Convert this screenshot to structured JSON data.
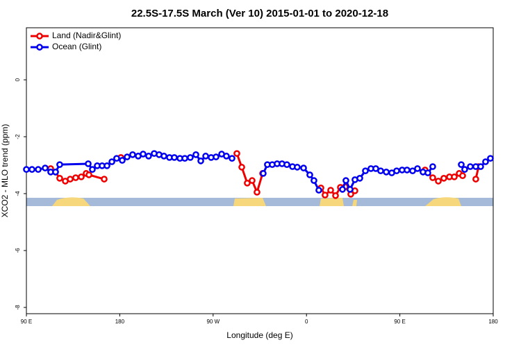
{
  "chart_data": {
    "type": "line",
    "title": "22.5S-17.5S March (Ver 10)   2015-01-01 to 2020-12-18",
    "x_label": "Longitude (deg E)",
    "y_label": "XCO2 - MLO trend (ppm)",
    "xlim": [
      90,
      540
    ],
    "xticks": [
      {
        "value": 90,
        "label": "90 E"
      },
      180,
      {
        "value": 270,
        "label": "90 W"
      },
      {
        "value": 360,
        "label": "0"
      },
      {
        "value": 450,
        "label": "90 E"
      },
      {
        "value": 540,
        "label": "180"
      }
    ],
    "ylim": [
      -8.22,
      1.83
    ],
    "yticks": [
      0,
      -2,
      -4,
      -6,
      -8
    ],
    "grid": false,
    "legend": "top-left",
    "series": [
      {
        "name": "Land (Nadir&Glint)",
        "color": "#ee0000",
        "x": [
          113.4,
          118.1,
          122.1,
          127.5,
          132.2,
          137.5,
          142.9,
          147.6,
          150.3,
          165,
          null,
          181.1,
          null,
          292.9,
          297.6,
          302.9,
          307.6,
          312.3,
          317.7,
          null,
          373.9,
          377.9,
          383.3,
          388,
          392.7,
          397.3,
          402.7,
          406.7,
          null,
          474.3,
          481.7,
          487.1,
          492.4,
          497.8,
          502.5,
          507.2,
          510.5,
          null,
          523.2,
          525.9
        ],
        "values": [
          -3.12,
          -3.24,
          -3.46,
          -3.56,
          -3.49,
          -3.44,
          -3.41,
          -3.29,
          -3.34,
          -3.49,
          null,
          -2.73,
          null,
          -2.59,
          -3.07,
          -3.63,
          -3.54,
          -3.95,
          -3.29,
          null,
          -3.8,
          -4.05,
          -3.88,
          -4.07,
          -3.78,
          -3.76,
          -4.02,
          -3.9,
          null,
          -3.17,
          -3.44,
          -3.56,
          -3.46,
          -3.41,
          -3.41,
          -3.29,
          -3.37,
          null,
          -3.49,
          -3.05
        ]
      },
      {
        "name": "Ocean (Glint)",
        "color": "#0000ee",
        "x": [
          90,
          95.4,
          101.4,
          108.1,
          113.4,
          118.1,
          122.1,
          149.6,
          153.6,
          158.3,
          163,
          167.7,
          172.4,
          177,
          182.4,
          187.1,
          192.4,
          197.8,
          202.5,
          207.8,
          213.2,
          217.9,
          222.6,
          227.9,
          232.6,
          238,
          242.7,
          248,
          253.4,
          258.1,
          262.8,
          268.1,
          272.8,
          278.2,
          282.8,
          288.2,
          null,
          318.3,
          322.3,
          327,
          331.7,
          336.4,
          341.1,
          346.5,
          351.1,
          357.2,
          363.2,
          367.2,
          371.9,
          null,
          394.7,
          398,
          402,
          406.7,
          411.4,
          416.8,
          422.1,
          426.8,
          431.5,
          436.9,
          442.2,
          446.9,
          452.2,
          456.9,
          462.3,
          467,
          472.3,
          477,
          481.7,
          null,
          509.2,
          512.5,
          517.9,
          523.2,
          527.9,
          532.6,
          537.3
        ],
        "values": [
          -3.15,
          -3.15,
          -3.15,
          -3.1,
          -3.24,
          -3.24,
          -2.98,
          -2.95,
          -3.15,
          -3.02,
          -3.02,
          -3.02,
          -2.88,
          -2.76,
          -2.83,
          -2.71,
          -2.63,
          -2.68,
          -2.61,
          -2.68,
          -2.59,
          -2.63,
          -2.68,
          -2.73,
          -2.73,
          -2.76,
          -2.76,
          -2.73,
          -2.63,
          -2.85,
          -2.68,
          -2.73,
          -2.71,
          -2.61,
          -2.68,
          -2.76,
          null,
          -3.29,
          -2.98,
          -2.98,
          -2.95,
          -2.95,
          -2.98,
          -3.05,
          -3.07,
          -3.1,
          -3.34,
          -3.54,
          -3.88,
          null,
          -3.85,
          -3.54,
          -3.85,
          -3.51,
          -3.46,
          -3.2,
          -3.12,
          -3.12,
          -3.2,
          -3.24,
          -3.27,
          -3.2,
          -3.17,
          -3.17,
          -3.2,
          -3.12,
          -3.24,
          -3.27,
          -3.05,
          null,
          -2.98,
          -3.15,
          -3.05,
          -3.05,
          -3.05,
          -2.88,
          -2.76
        ]
      }
    ]
  }
}
